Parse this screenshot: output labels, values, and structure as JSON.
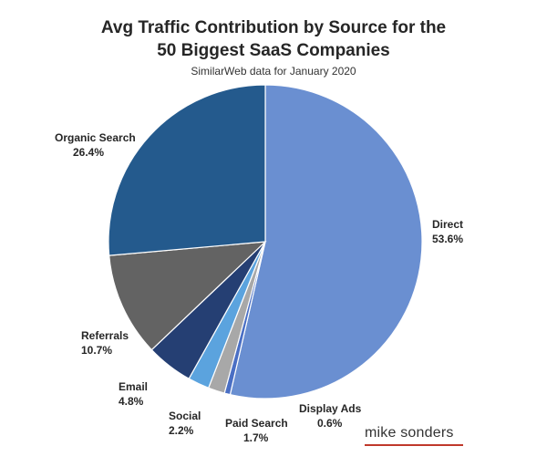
{
  "chart_data": {
    "type": "pie",
    "title_line1": "Avg Traffic Contribution by Source for the",
    "title_line2": "50 Biggest SaaS Companies",
    "subtitle": "SimilarWeb data for January 2020",
    "slices": [
      {
        "name": "Direct",
        "value": 53.6,
        "value_label": "53.6%",
        "color": "#6a8fd1"
      },
      {
        "name": "Display Ads",
        "value": 0.6,
        "value_label": "0.6%",
        "color": "#4a6fc4"
      },
      {
        "name": "Paid Search",
        "value": 1.7,
        "value_label": "1.7%",
        "color": "#a8a8a8"
      },
      {
        "name": "Social",
        "value": 2.2,
        "value_label": "2.2%",
        "color": "#5ba3de"
      },
      {
        "name": "Email",
        "value": 4.8,
        "value_label": "4.8%",
        "color": "#253f73"
      },
      {
        "name": "Referrals",
        "value": 10.7,
        "value_label": "10.7%",
        "color": "#636363"
      },
      {
        "name": "Organic Search",
        "value": 26.4,
        "value_label": "26.4%",
        "color": "#245a8d"
      }
    ],
    "start_angle_deg": 0,
    "direction": "clockwise"
  },
  "branding": {
    "text": "mike sonders",
    "underline_color": "#c0392b"
  }
}
